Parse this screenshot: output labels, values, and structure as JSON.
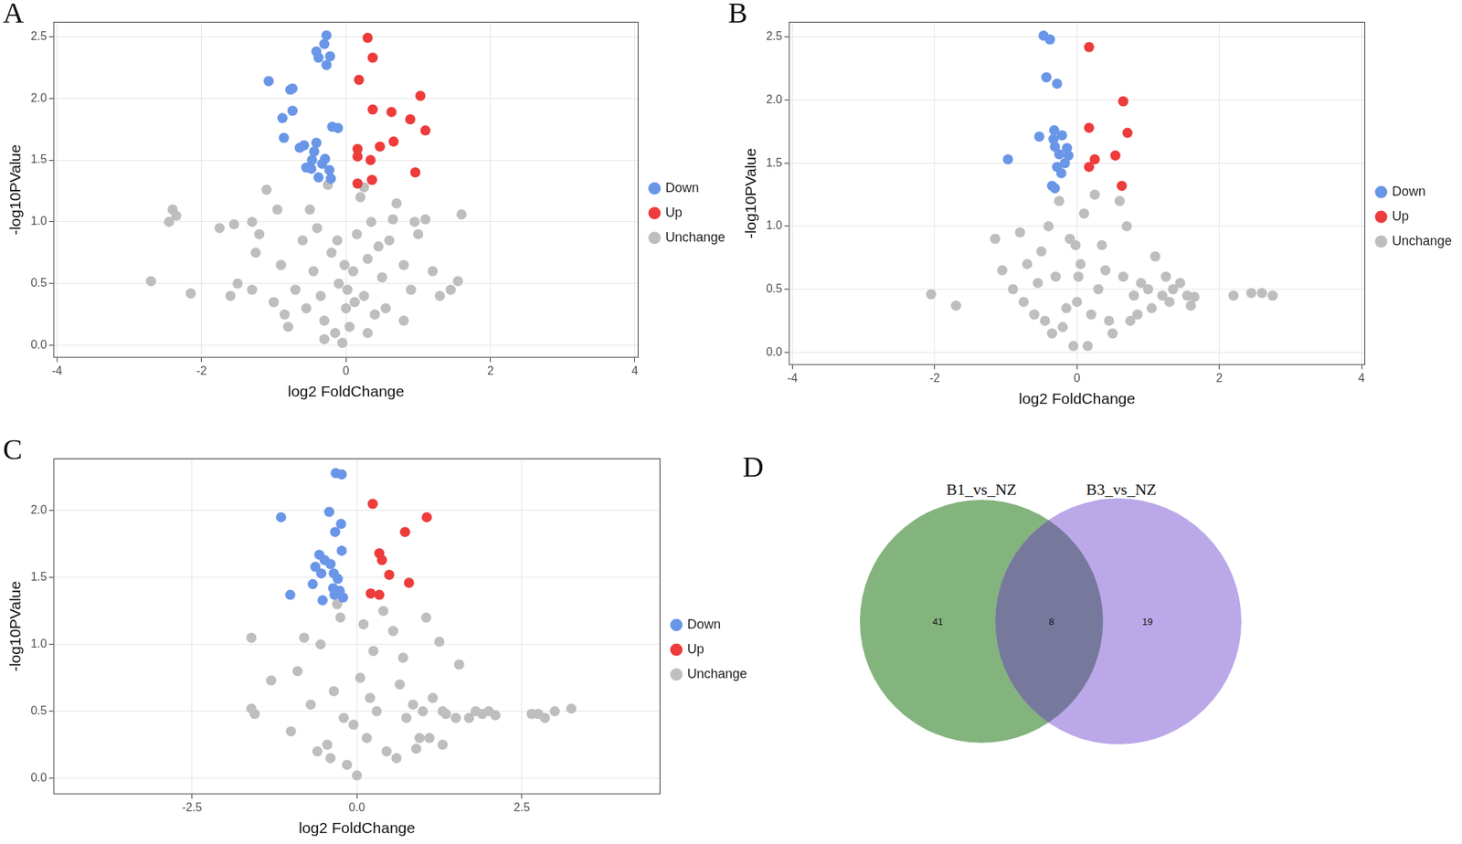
{
  "chart_data": [
    {
      "type": "scatter",
      "panel_label": "A",
      "x_label": "log2 FoldChange",
      "y_label": "-log10PValue",
      "xlim": [
        -4.05,
        4.05
      ],
      "xticks": [
        -4,
        -2,
        0,
        2,
        4
      ],
      "ylim": [
        -0.1,
        2.62
      ],
      "yticks": [
        {
          "value": 0,
          "label": "0.0"
        },
        0.5,
        {
          "value": 1,
          "label": "1.0"
        },
        1.5,
        {
          "value": 2,
          "label": "2.0"
        },
        2.5
      ],
      "grid": true,
      "legend": "right",
      "marker": "circle",
      "series": [
        {
          "name": "Down",
          "color": "#6a96e8",
          "x": [
            -0.27,
            -0.3,
            -0.41,
            -0.38,
            -0.22,
            -0.27,
            -1.07,
            -0.74,
            -0.74,
            -0.88,
            -0.19,
            -0.11,
            -0.86,
            -0.64,
            -0.58,
            -0.41,
            -0.44,
            -0.29,
            -0.47,
            -0.48,
            -0.38,
            -0.23,
            -0.33,
            -0.21,
            -0.55,
            -0.77
          ],
          "values": [
            2.51,
            2.44,
            2.38,
            2.33,
            2.34,
            2.27,
            2.14,
            2.08,
            1.9,
            1.84,
            1.77,
            1.76,
            1.68,
            1.6,
            1.62,
            1.64,
            1.57,
            1.51,
            1.5,
            1.43,
            1.36,
            1.42,
            1.47,
            1.35,
            1.44,
            2.07
          ]
        },
        {
          "name": "Unchange",
          "color": "#bebebe",
          "x": [
            -2.7,
            -2.15,
            -2.4,
            -2.35,
            -2.45,
            -1.75,
            -1.55,
            -1.3,
            -1.1,
            -1.2,
            -1.25,
            -1.5,
            -1.3,
            -1.0,
            -0.85,
            -0.6,
            -0.5,
            -0.45,
            -0.35,
            -0.3,
            -0.2,
            -0.15,
            -0.1,
            -0.05,
            0,
            0.05,
            0.1,
            0.15,
            0.2,
            0.25,
            0.3,
            0.35,
            0.4,
            0.5,
            0.6,
            0.7,
            0.8,
            0.9,
            1.0,
            1.1,
            1.2,
            1.3,
            1.55,
            1.6,
            1.45,
            -0.7,
            -0.9,
            -0.4,
            0.45,
            -0.25,
            0.25,
            0.55,
            -0.55,
            0.8,
            -0.8,
            0.02,
            -0.02,
            0.12,
            -0.12,
            0.65,
            -1.6,
            -0.95,
            0.95,
            -0.3,
            0.3
          ],
          "values": [
            0.52,
            0.42,
            1.1,
            1.05,
            1.0,
            0.95,
            0.98,
            1.0,
            1.26,
            0.9,
            0.75,
            0.5,
            0.45,
            0.35,
            0.25,
            0.85,
            1.1,
            0.6,
            0.4,
            0.2,
            0.75,
            0.1,
            0.5,
            0.02,
            0.3,
            0.15,
            0.6,
            0.9,
            1.2,
            0.4,
            0.7,
            1.0,
            0.25,
            0.55,
            0.85,
            1.15,
            0.65,
            0.45,
            0.9,
            1.02,
            0.6,
            0.4,
            0.52,
            1.06,
            0.45,
            0.45,
            0.65,
            0.95,
            0.8,
            1.3,
            1.28,
            0.3,
            0.3,
            0.2,
            0.15,
            0.45,
            0.65,
            0.35,
            0.85,
            1.02,
            0.4,
            1.1,
            1.0,
            0.05,
            0.1
          ]
        },
        {
          "name": "Up",
          "color": "#ee3b3b",
          "x": [
            0.3,
            0.37,
            0.18,
            1.03,
            0.37,
            0.63,
            0.89,
            1.1,
            0.66,
            0.47,
            0.16,
            0.16,
            0.34,
            0.96,
            0.36,
            0.16
          ],
          "values": [
            2.49,
            2.33,
            2.15,
            2.02,
            1.91,
            1.89,
            1.83,
            1.74,
            1.65,
            1.61,
            1.59,
            1.53,
            1.5,
            1.4,
            1.34,
            1.31
          ]
        }
      ]
    },
    {
      "type": "scatter",
      "panel_label": "B",
      "x_label": "log2 FoldChange",
      "y_label": "-log10PValue",
      "xlim": [
        -4.05,
        4.05
      ],
      "xticks": [
        -4,
        -2,
        0,
        2,
        4
      ],
      "ylim": [
        -0.1,
        2.62
      ],
      "yticks": [
        {
          "value": 0,
          "label": "0.0"
        },
        0.5,
        {
          "value": 1,
          "label": "1.0"
        },
        1.5,
        {
          "value": 2,
          "label": "2.0"
        },
        2.5
      ],
      "grid": true,
      "legend": "right",
      "marker": "circle",
      "series": [
        {
          "name": "Down",
          "color": "#6a96e8",
          "x": [
            -0.47,
            -0.38,
            -0.43,
            -0.28,
            -0.32,
            -0.21,
            -0.53,
            -0.33,
            -0.31,
            -0.14,
            -0.25,
            -0.12,
            -0.97,
            -0.17,
            -0.22,
            -0.28,
            -0.35,
            -0.31
          ],
          "values": [
            2.51,
            2.48,
            2.18,
            2.13,
            1.76,
            1.72,
            1.71,
            1.69,
            1.63,
            1.62,
            1.57,
            1.56,
            1.53,
            1.5,
            1.42,
            1.47,
            1.32,
            1.3
          ]
        },
        {
          "name": "Unchange",
          "color": "#bebebe",
          "x": [
            -2.05,
            -1.7,
            -1.15,
            -1.05,
            -0.9,
            -0.75,
            -0.6,
            -0.5,
            -0.4,
            -0.3,
            -0.2,
            -0.1,
            -0.05,
            0,
            0.05,
            0.1,
            0.2,
            0.3,
            0.35,
            0.45,
            0.6,
            0.65,
            0.8,
            0.9,
            1.0,
            1.1,
            1.2,
            1.35,
            1.45,
            1.55,
            1.65,
            2.2,
            2.45,
            2.6,
            2.75,
            -0.25,
            0.25,
            0.15,
            -0.15,
            0.5,
            -0.55,
            0.75,
            -0.8,
            0.85,
            1.05,
            1.3,
            -0.35,
            0.4,
            -0.45,
            0.7,
            -0.7,
            1.6,
            1.25,
            0.02,
            -0.02
          ],
          "values": [
            0.46,
            0.37,
            0.9,
            0.65,
            0.5,
            0.4,
            0.3,
            0.8,
            1.0,
            0.6,
            0.2,
            0.9,
            0.05,
            0.4,
            0.7,
            1.1,
            0.3,
            0.5,
            0.85,
            0.25,
            1.2,
            0.6,
            0.45,
            0.55,
            0.5,
            0.76,
            0.45,
            0.5,
            0.55,
            0.45,
            0.44,
            0.45,
            0.47,
            0.47,
            0.45,
            1.2,
            1.25,
            0.05,
            0.35,
            0.15,
            0.55,
            0.25,
            0.95,
            0.3,
            0.35,
            0.4,
            0.15,
            0.65,
            0.25,
            1.0,
            0.7,
            0.37,
            0.6,
            0.6,
            0.85
          ]
        },
        {
          "name": "Up",
          "color": "#ee3b3b",
          "x": [
            0.17,
            0.65,
            0.17,
            0.71,
            0.54,
            0.25,
            0.17,
            0.63
          ],
          "values": [
            2.42,
            1.99,
            1.78,
            1.74,
            1.56,
            1.53,
            1.47,
            1.32
          ]
        }
      ]
    },
    {
      "type": "scatter",
      "panel_label": "C",
      "x_label": "log2 FoldChange",
      "y_label": "-log10PValue",
      "xlim": [
        -4.6,
        4.6
      ],
      "xticks": [
        -2.5,
        {
          "value": 0,
          "label": "0.0"
        },
        2.5
      ],
      "ylim": [
        -0.12,
        2.39
      ],
      "yticks": [
        {
          "value": 0,
          "label": "0.0"
        },
        0.5,
        {
          "value": 1,
          "label": "1.0"
        },
        1.5,
        {
          "value": 2,
          "label": "2.0"
        }
      ],
      "grid": true,
      "legend": "right",
      "marker": "circle",
      "series": [
        {
          "name": "Down",
          "color": "#6a96e8",
          "x": [
            -0.32,
            -0.23,
            -1.15,
            -0.42,
            -0.33,
            -0.24,
            -0.23,
            -0.57,
            -0.49,
            -0.4,
            -0.63,
            -0.35,
            -0.54,
            -0.29,
            -0.67,
            -0.36,
            -0.26,
            -1.01,
            -0.34,
            -0.52,
            -0.21
          ],
          "values": [
            2.28,
            2.27,
            1.95,
            1.99,
            1.84,
            1.9,
            1.7,
            1.67,
            1.63,
            1.6,
            1.58,
            1.53,
            1.53,
            1.49,
            1.45,
            1.42,
            1.4,
            1.37,
            1.37,
            1.33,
            1.35
          ]
        },
        {
          "name": "Unchange",
          "color": "#bebebe",
          "x": [
            -1.6,
            -1.6,
            -1.55,
            -1.3,
            -1.0,
            -0.9,
            -0.7,
            -0.55,
            -0.45,
            -0.35,
            -0.25,
            -0.15,
            -0.05,
            0,
            0.05,
            0.15,
            0.25,
            0.3,
            0.45,
            0.55,
            0.65,
            0.75,
            0.85,
            0.95,
            1.0,
            1.05,
            1.15,
            1.3,
            1.35,
            1.5,
            1.55,
            1.7,
            1.8,
            1.9,
            2.0,
            2.1,
            2.65,
            2.75,
            2.85,
            3.0,
            3.25,
            -0.8,
            0.4,
            -0.4,
            0.6,
            1.1,
            1.3,
            0.9,
            -0.2,
            0.2,
            -0.6,
            0.7,
            -0.3,
            0.1,
            1.25
          ],
          "values": [
            1.05,
            0.52,
            0.48,
            0.73,
            0.35,
            0.8,
            0.55,
            1.0,
            0.25,
            0.65,
            1.2,
            0.1,
            0.4,
            0.02,
            0.75,
            0.3,
            0.95,
            0.5,
            0.2,
            1.1,
            0.7,
            0.45,
            0.55,
            0.3,
            0.5,
            1.2,
            0.6,
            0.5,
            0.48,
            0.45,
            0.85,
            0.45,
            0.5,
            0.48,
            0.5,
            0.47,
            0.48,
            0.48,
            0.45,
            0.5,
            0.52,
            1.05,
            1.25,
            0.15,
            0.15,
            0.3,
            0.25,
            0.22,
            0.45,
            0.6,
            0.2,
            0.9,
            1.3,
            1.15,
            1.02
          ]
        },
        {
          "name": "Up",
          "color": "#ee3b3b",
          "x": [
            0.24,
            1.06,
            0.73,
            0.34,
            0.38,
            0.49,
            0.79,
            0.21,
            0.34
          ],
          "values": [
            2.05,
            1.95,
            1.84,
            1.68,
            1.63,
            1.52,
            1.46,
            1.38,
            1.37
          ]
        }
      ]
    },
    {
      "type": "venn",
      "panel_label": "D",
      "sets": [
        {
          "name": "B1_vs_NZ",
          "color": "#84b47d",
          "value": 41
        },
        {
          "name": "B3_vs_NZ",
          "color": "#bba8e9",
          "value": 19
        }
      ],
      "overlap": 8
    }
  ]
}
